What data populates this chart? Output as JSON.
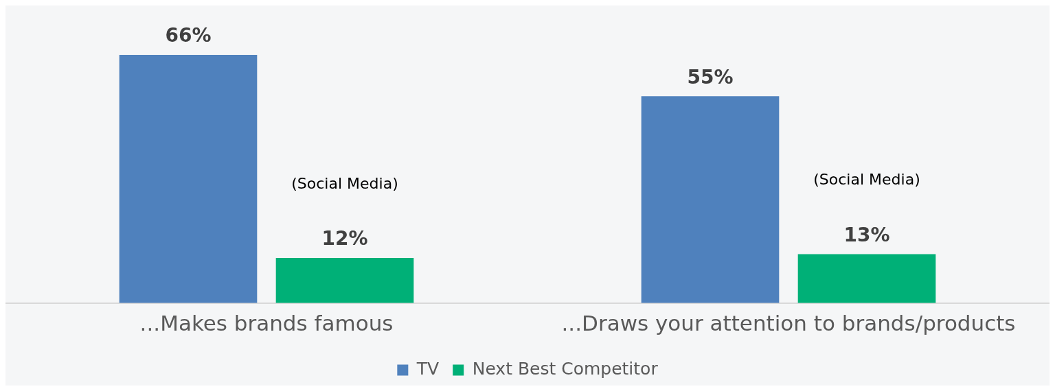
{
  "chart_data": {
    "type": "bar",
    "categories": [
      "...Makes brands famous",
      "...Draws your attention to brands/products"
    ],
    "series": [
      {
        "name": "TV",
        "color": "#4f81bd",
        "values": [
          66,
          55
        ],
        "value_labels": [
          "66%",
          "55%"
        ]
      },
      {
        "name": "Next Best Competitor",
        "color": "#00b077",
        "values": [
          12,
          13
        ],
        "value_labels": [
          "12%",
          "13%"
        ]
      }
    ],
    "annotations": [
      "(Social Media)",
      "(Social Media)"
    ],
    "legend": "bottom",
    "grid": false
  }
}
